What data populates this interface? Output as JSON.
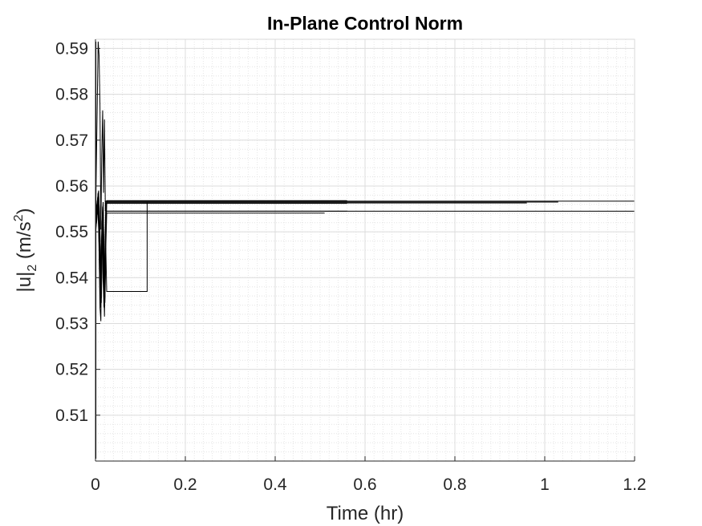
{
  "chart_data": {
    "type": "line",
    "title": "In-Plane Control Norm",
    "xlabel": "Time (hr)",
    "ylabel": {
      "base": "|u|",
      "sub": "2",
      "unit_open": " (m/s",
      "sup": "2",
      "unit_close": ")"
    },
    "xlim": [
      0,
      1.2
    ],
    "ylim": [
      0.5,
      0.592
    ],
    "x_ticks": [
      0,
      0.2,
      0.4,
      0.6,
      0.8,
      1,
      1.2
    ],
    "x_tick_labels": [
      "0",
      "0.2",
      "0.4",
      "0.6",
      "0.8",
      "1",
      "1.2"
    ],
    "y_ticks": [
      0.51,
      0.52,
      0.53,
      0.54,
      0.55,
      0.56,
      0.57,
      0.58,
      0.59
    ],
    "y_tick_labels": [
      "0.51",
      "0.52",
      "0.53",
      "0.54",
      "0.55",
      "0.56",
      "0.57",
      "0.58",
      "0.59"
    ],
    "grid": true,
    "minor_grid": true,
    "legend": "none",
    "line_color": "#000000",
    "series": [
      {
        "x": [
          0,
          0.003,
          0.005,
          0.007,
          0.009,
          0.011,
          0.013,
          0.015,
          0.017,
          0.019,
          0.021,
          0.023,
          1.2
        ],
        "y": [
          0.5505,
          0.5525,
          0.556,
          0.551,
          0.5405,
          0.5335,
          0.5465,
          0.5525,
          0.5395,
          0.5335,
          0.5465,
          0.5567,
          0.5567
        ]
      },
      {
        "x": [
          0,
          0.004,
          0.006,
          0.008,
          0.01,
          0.012,
          0.014,
          0.016,
          0.018,
          0.02,
          0.022,
          0.024,
          1.2
        ],
        "y": [
          0.5495,
          0.554,
          0.5545,
          0.5475,
          0.5335,
          0.5305,
          0.5485,
          0.5555,
          0.5405,
          0.5315,
          0.5425,
          0.5545,
          0.5545
        ]
      },
      {
        "x": [
          0,
          0.005,
          0.007,
          0.009,
          0.011,
          0.013,
          0.015,
          0.017,
          0.019,
          0.021,
          0.023,
          0.025,
          1.03
        ],
        "y": [
          0.5535,
          0.5575,
          0.559,
          0.5535,
          0.5425,
          0.5355,
          0.5485,
          0.5565,
          0.5445,
          0.5365,
          0.5505,
          0.5565,
          0.5565
        ]
      },
      {
        "x": [
          0,
          0.004,
          0.006,
          0.008,
          0.01,
          0.012,
          0.014,
          0.016,
          0.018,
          0.02,
          0.022,
          0.024,
          0.56
        ],
        "y": [
          0.5515,
          0.5555,
          0.5585,
          0.5545,
          0.5455,
          0.5375,
          0.5465,
          0.5535,
          0.5415,
          0.5335,
          0.5455,
          0.5545,
          0.5545
        ]
      },
      {
        "x": [
          0,
          0.005,
          0.007,
          0.009,
          0.011,
          0.013,
          0.015,
          0.017,
          0.019,
          0.021,
          0.023,
          0.025,
          0.51
        ],
        "y": [
          0.5525,
          0.556,
          0.5575,
          0.5525,
          0.5445,
          0.5345,
          0.5495,
          0.5545,
          0.5435,
          0.5345,
          0.5465,
          0.5541,
          0.5541
        ]
      },
      {
        "x": [
          0,
          0.004,
          0.006,
          0.008,
          0.01,
          0.012,
          0.014,
          0.016,
          0.018,
          0.02,
          0.022,
          0.024,
          0.96
        ],
        "y": [
          0.5535,
          0.5565,
          0.5585,
          0.5545,
          0.5455,
          0.5365,
          0.5505,
          0.5555,
          0.5445,
          0.5365,
          0.5485,
          0.5563,
          0.5563
        ]
      },
      {
        "x": [
          0,
          0.005,
          0.007,
          0.009,
          0.011,
          0.013,
          0.015,
          0.017,
          0.019,
          0.021,
          0.023,
          0.025,
          0.56
        ],
        "y": [
          0.5525,
          0.5555,
          0.558,
          0.5545,
          0.5465,
          0.5385,
          0.5515,
          0.5565,
          0.5455,
          0.5375,
          0.5495,
          0.5568,
          0.5568
        ]
      },
      {
        "x": [
          0,
          0.004,
          0.006,
          0.008,
          0.01,
          0.012,
          0.014,
          0.016,
          0.018,
          0.02,
          0.022,
          0.024,
          0.56
        ],
        "y": [
          0.5505,
          0.5545,
          0.5565,
          0.5525,
          0.5445,
          0.5355,
          0.5475,
          0.5545,
          0.5425,
          0.5345,
          0.5465,
          0.5562,
          0.5562
        ]
      },
      {
        "x": [
          0,
          0.005,
          0.007,
          0.009,
          0.011,
          0.013,
          0.015,
          0.017,
          0.019,
          0.021,
          0.023,
          0.025,
          0.115,
          0.115,
          0.9
        ],
        "y": [
          0.5515,
          0.5545,
          0.557,
          0.5525,
          0.5435,
          0.5365,
          0.5495,
          0.5555,
          0.5435,
          0.5355,
          0.5465,
          0.537,
          0.537,
          0.5565,
          0.5565
        ]
      },
      {
        "x": [
          0,
          0.006,
          0.008,
          0.01,
          0.012,
          0.014,
          0.016,
          0.018,
          0.02,
          0.022,
          0.024
        ],
        "y": [
          0.5515,
          0.5915,
          0.5885,
          0.5775,
          0.5505,
          0.5665,
          0.5765,
          0.5585,
          0.5745,
          0.5545,
          0.5555
        ]
      },
      {
        "x": [
          0.001,
          0.001
        ],
        "y": [
          0.5005,
          0.5915
        ]
      }
    ]
  }
}
